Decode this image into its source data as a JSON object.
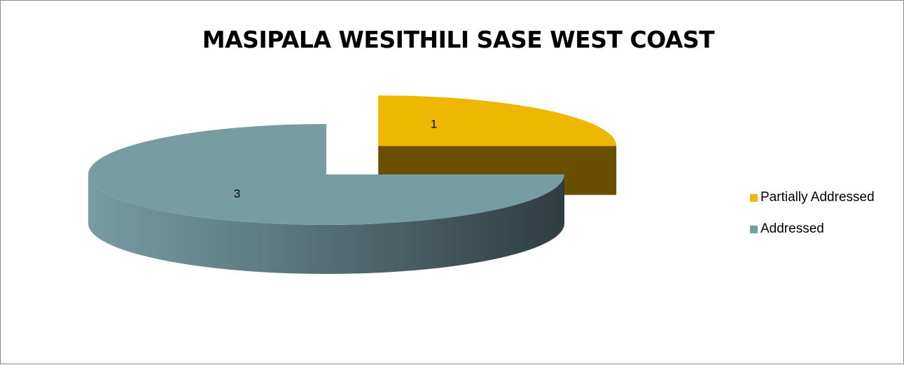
{
  "chart_data": {
    "type": "pie",
    "style": "3d-exploded",
    "title": "MASIPALA WESITHILI SASE WEST COAST",
    "categories": [
      "Partially Addressed",
      "Addressed"
    ],
    "values": [
      1,
      3
    ],
    "data_labels": [
      "1",
      "3"
    ],
    "colors": [
      "#efb800",
      "#779ca2"
    ],
    "side_colors": [
      "#6a4f00",
      "#2f3d41"
    ],
    "legend_position": "right"
  }
}
